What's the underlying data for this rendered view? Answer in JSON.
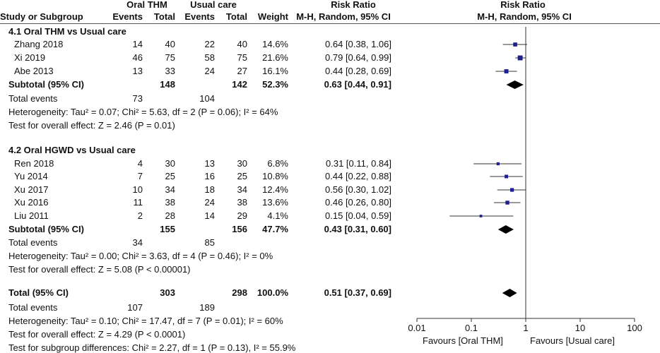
{
  "header": {
    "group1": "Oral THM",
    "group2": "Usual care",
    "rr_title_left": "Risk Ratio",
    "rr_title_right": "Risk Ratio",
    "col_study": "Study or Subgroup",
    "col_events1": "Events",
    "col_total1": "Total",
    "col_events2": "Events",
    "col_total2": "Total",
    "col_weight": "Weight",
    "col_method_left": "M-H, Random, 95% CI",
    "col_method_right": "M-H, Random, 95% CI"
  },
  "chart_data": {
    "type": "forest",
    "x_scale": "log",
    "xlim": [
      0.01,
      100
    ],
    "ticks": [
      "0.01",
      "0.1",
      "1",
      "10",
      "100"
    ],
    "tick_values": [
      0.01,
      0.1,
      1,
      10,
      100
    ],
    "null_line": 1,
    "favours_left": "Favours [Oral THM]",
    "favours_right": "Favours [Usual care]",
    "marker_color": "#1f1f8f",
    "groups": [
      {
        "title": "4.1 Oral THM vs Usual care",
        "studies": [
          {
            "name": "Zhang 2018",
            "e1": "14",
            "n1": "40",
            "e2": "22",
            "n2": "40",
            "weight": "14.6%",
            "rr": 0.64,
            "lo": 0.38,
            "hi": 1.06,
            "ci_text": "0.64 [0.38, 1.06]"
          },
          {
            "name": "Xi 2019",
            "e1": "46",
            "n1": "75",
            "e2": "58",
            "n2": "75",
            "weight": "21.6%",
            "rr": 0.79,
            "lo": 0.64,
            "hi": 0.99,
            "ci_text": "0.79 [0.64, 0.99]"
          },
          {
            "name": "Abe 2013",
            "e1": "13",
            "n1": "33",
            "e2": "24",
            "n2": "27",
            "weight": "16.1%",
            "rr": 0.44,
            "lo": 0.28,
            "hi": 0.69,
            "ci_text": "0.44 [0.28, 0.69]"
          }
        ],
        "subtotal": {
          "label": "Subtotal (95% CI)",
          "n1": "148",
          "n2": "142",
          "weight": "52.3%",
          "rr": 0.63,
          "lo": 0.44,
          "hi": 0.91,
          "ci_text": "0.63 [0.44, 0.91]"
        },
        "total_events": {
          "label": "Total events",
          "e1": "73",
          "e2": "104"
        },
        "heterogeneity": "Heterogeneity: Tau² = 0.07; Chi² = 5.63, df = 2 (P = 0.06); I² = 64%",
        "overall": "Test for overall effect: Z = 2.46 (P = 0.01)"
      },
      {
        "title": "4.2 Oral HGWD vs Usual care",
        "studies": [
          {
            "name": "Ren 2018",
            "e1": "4",
            "n1": "30",
            "e2": "13",
            "n2": "30",
            "weight": "6.8%",
            "rr": 0.31,
            "lo": 0.11,
            "hi": 0.84,
            "ci_text": "0.31 [0.11, 0.84]"
          },
          {
            "name": "Yu 2014",
            "e1": "7",
            "n1": "25",
            "e2": "16",
            "n2": "25",
            "weight": "10.8%",
            "rr": 0.44,
            "lo": 0.22,
            "hi": 0.88,
            "ci_text": "0.44 [0.22, 0.88]"
          },
          {
            "name": "Xu 2017",
            "e1": "10",
            "n1": "34",
            "e2": "18",
            "n2": "34",
            "weight": "12.4%",
            "rr": 0.56,
            "lo": 0.3,
            "hi": 1.02,
            "ci_text": "0.56 [0.30, 1.02]"
          },
          {
            "name": "Xu 2016",
            "e1": "11",
            "n1": "38",
            "e2": "24",
            "n2": "38",
            "weight": "13.6%",
            "rr": 0.46,
            "lo": 0.26,
            "hi": 0.8,
            "ci_text": "0.46 [0.26, 0.80]"
          },
          {
            "name": "Liu 2011",
            "e1": "2",
            "n1": "28",
            "e2": "14",
            "n2": "29",
            "weight": "4.1%",
            "rr": 0.15,
            "lo": 0.04,
            "hi": 0.59,
            "ci_text": "0.15 [0.04, 0.59]"
          }
        ],
        "subtotal": {
          "label": "Subtotal (95% CI)",
          "n1": "155",
          "n2": "156",
          "weight": "47.7%",
          "rr": 0.43,
          "lo": 0.31,
          "hi": 0.6,
          "ci_text": "0.43 [0.31, 0.60]"
        },
        "total_events": {
          "label": "Total events",
          "e1": "34",
          "e2": "85"
        },
        "heterogeneity": "Heterogeneity: Tau² = 0.00; Chi² = 3.63, df = 4 (P = 0.46); I² = 0%",
        "overall": "Test for overall effect: Z = 5.08 (P < 0.00001)"
      }
    ],
    "total": {
      "label": "Total (95% CI)",
      "n1": "303",
      "n2": "298",
      "weight": "100.0%",
      "rr": 0.51,
      "lo": 0.37,
      "hi": 0.69,
      "ci_text": "0.51 [0.37, 0.69]"
    },
    "total_events": {
      "label": "Total events",
      "e1": "107",
      "e2": "189"
    },
    "heterogeneity": "Heterogeneity: Tau² = 0.10; Chi² = 17.47, df = 7 (P = 0.01); I² = 60%",
    "overall": "Test for overall effect: Z = 4.29 (P < 0.0001)",
    "subgroup_diff": "Test for subgroup differences: Chi² = 2.27, df = 1 (P = 0.13), I² = 55.9%"
  }
}
